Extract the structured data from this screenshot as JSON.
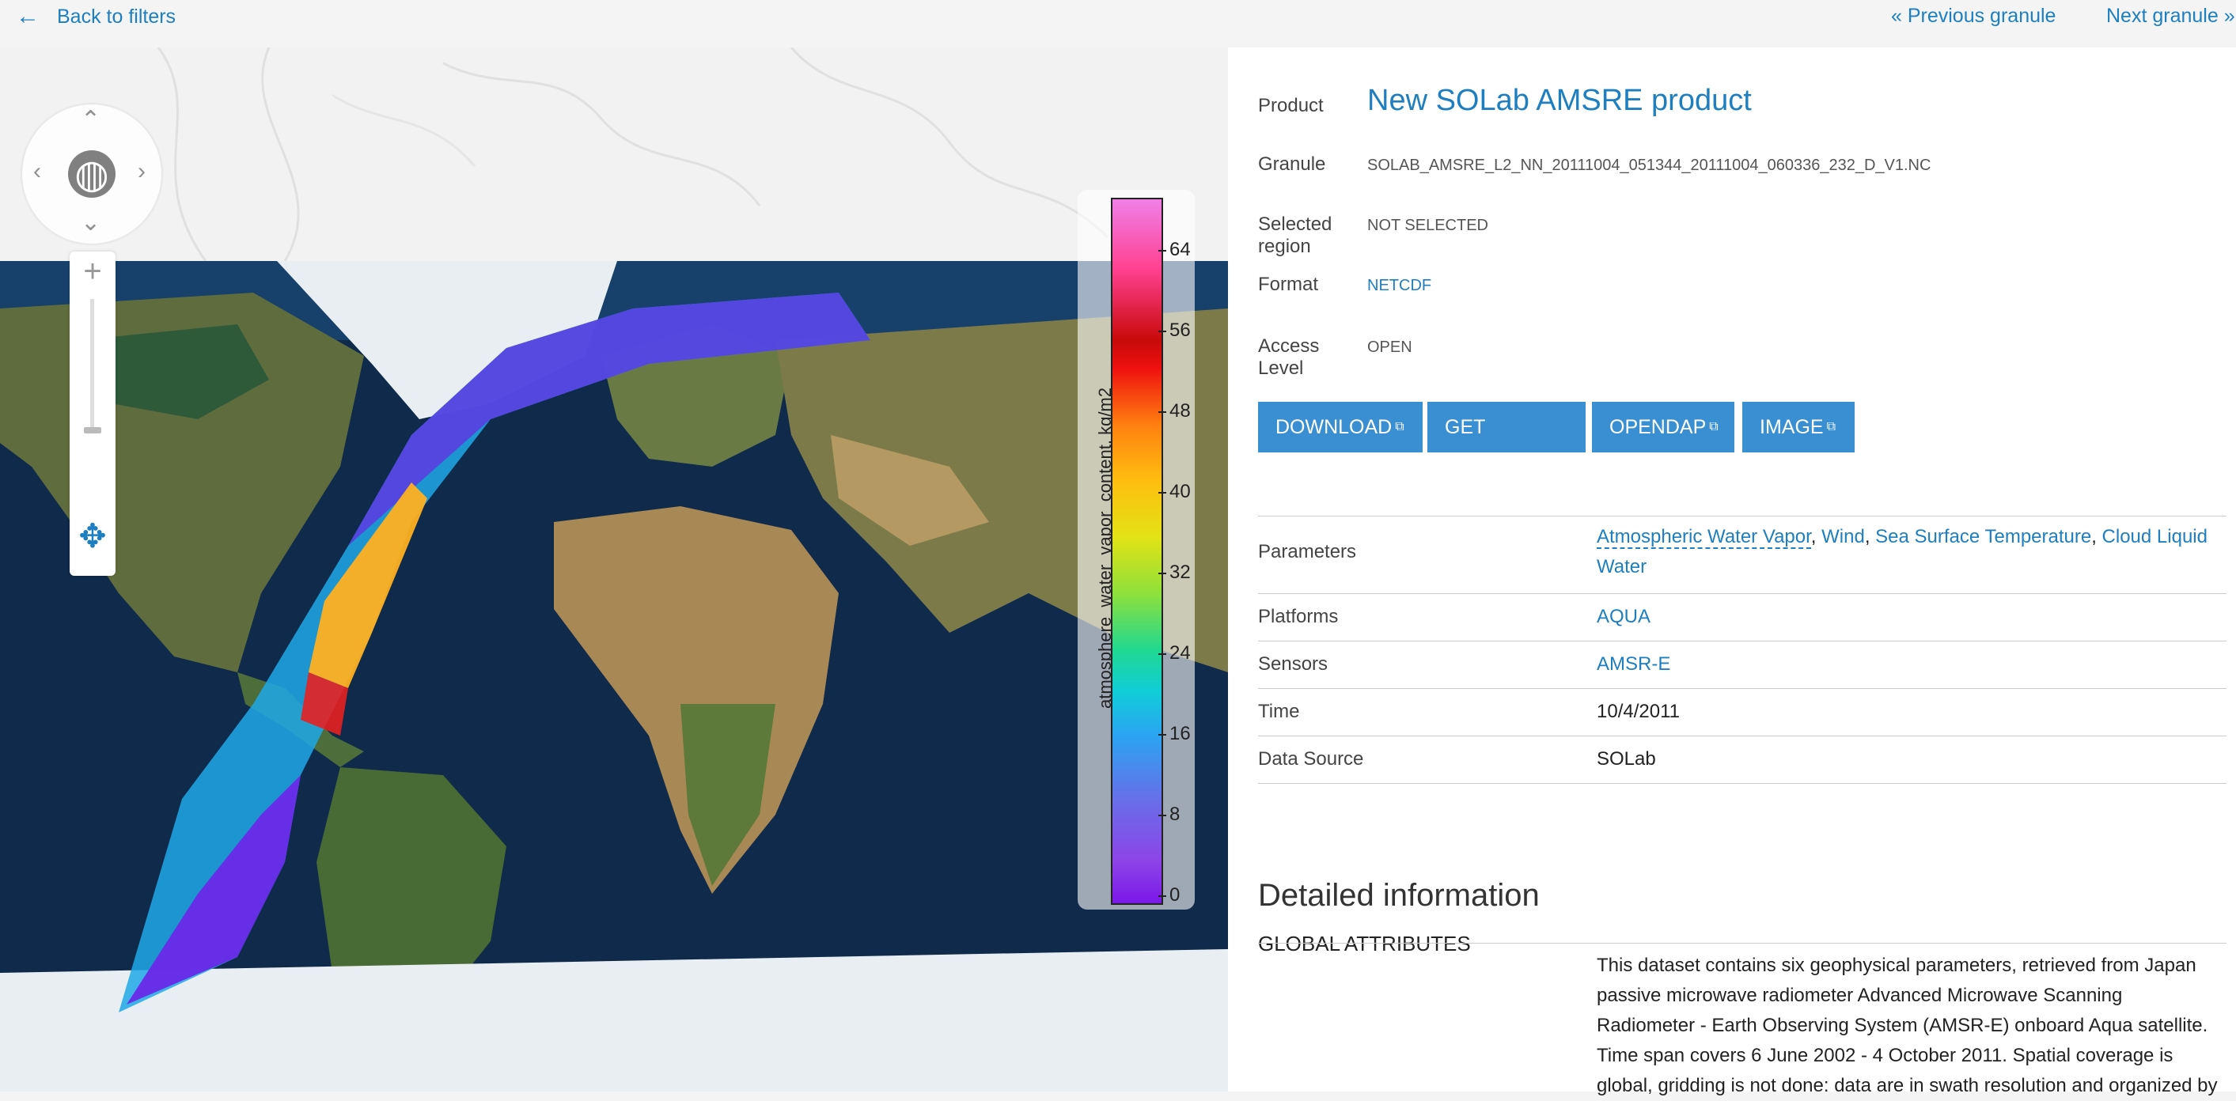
{
  "nav": {
    "back_label": "Back to filters",
    "back_icon": "left-arrow-icon",
    "prev_label": "« Previous granule",
    "next_label": "Next granule »"
  },
  "legend": {
    "title": "atmosphere_water_vapor_content, kg/m2",
    "ticks": [
      "64",
      "56",
      "48",
      "40",
      "32",
      "24",
      "16",
      "8",
      "0"
    ]
  },
  "product": {
    "label": "Product",
    "title": "New SOLab AMSRE product",
    "granule_label": "Granule",
    "granule": "SOLAB_AMSRE_L2_NN_20111004_051344_20111004_060336_232_D_V1.NC",
    "region_label": "Selected\nregion",
    "region_value": "NOT SELECTED",
    "format_label": "Format",
    "format_value": "NETCDF",
    "access_label": "Access\nLevel",
    "access_value": "OPEN"
  },
  "buttons": {
    "download": "DOWNLOAD",
    "scripts": "GET SCRIPTS",
    "opendap": "OPENDAP",
    "image": "IMAGE"
  },
  "table": {
    "parameters_label": "Parameters",
    "param_1": "Atmospheric Water Vapor",
    "param_2": "Wind",
    "param_3": "Sea Surface Temperature",
    "param_4": "Cloud Liquid Water",
    "platforms_label": "Platforms",
    "platforms": "AQUA",
    "sensors_label": "Sensors",
    "sensors": "AMSR-E",
    "time_label": "Time",
    "time": "10/4/2011",
    "source_label": "Data Source",
    "source": "SOLab"
  },
  "details": {
    "title": "Detailed information",
    "global_attributes": "GLOBAL ATTRIBUTES",
    "description": "This dataset contains six geophysical parameters, retrieved from Japan passive microwave radiometer Advanced Microwave Scanning Radiometer - Earth Observing System (AMSR-E) onboard Aqua satellite. Time span covers 6 June 2002 - 4 October 2011. Spatial coverage is global, gridding is not done: data are in swath resolution and organized by"
  }
}
